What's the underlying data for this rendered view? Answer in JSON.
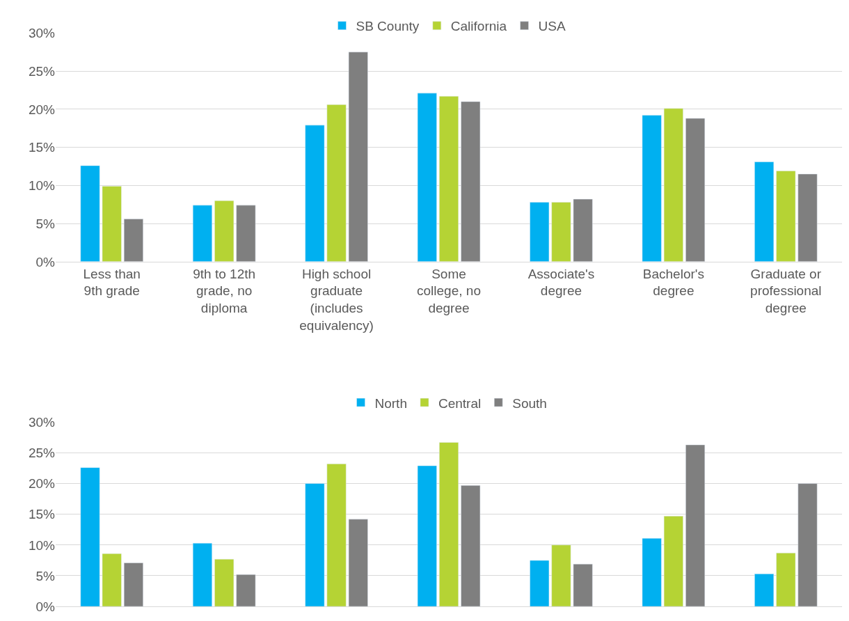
{
  "chart_data": [
    {
      "type": "bar",
      "categories": [
        "Less than\n9th grade",
        "9th to 12th\ngrade, no\ndiploma",
        "High school\ngraduate\n(includes\nequivalency)",
        "Some\ncollege, no\ndegree",
        "Associate's\ndegree",
        "Bachelor's\ndegree",
        "Graduate or\nprofessional\ndegree"
      ],
      "series": [
        {
          "name": "SB County",
          "color": "#00b0f0",
          "values": [
            12.6,
            7.4,
            17.9,
            22.1,
            7.8,
            19.2,
            13.1
          ]
        },
        {
          "name": "California",
          "color": "#b5d334",
          "values": [
            9.9,
            8.0,
            20.6,
            21.7,
            7.8,
            20.1,
            11.9
          ]
        },
        {
          "name": "USA",
          "color": "#7f7f7f",
          "values": [
            5.6,
            7.4,
            27.5,
            21.0,
            8.2,
            18.8,
            11.5
          ]
        }
      ],
      "ylim": [
        0,
        30
      ],
      "yticks": [
        {
          "value": 0,
          "label": "0%"
        },
        {
          "value": 5,
          "label": "5%"
        },
        {
          "value": 10,
          "label": "10%"
        },
        {
          "value": 15,
          "label": "15%"
        },
        {
          "value": 20,
          "label": "20%"
        },
        {
          "value": 25,
          "label": "25%"
        },
        {
          "value": 30,
          "label": "30%"
        }
      ],
      "grid": "y",
      "legend": "top"
    },
    {
      "type": "bar",
      "categories": [
        null,
        null,
        null,
        null,
        null,
        null,
        null
      ],
      "series": [
        {
          "name": "North",
          "color": "#00b0f0",
          "values": [
            22.6,
            10.3,
            20.0,
            22.9,
            7.5,
            11.1,
            5.3
          ]
        },
        {
          "name": "Central",
          "color": "#b5d334",
          "values": [
            8.6,
            7.7,
            23.2,
            26.7,
            10.0,
            14.7,
            8.7
          ]
        },
        {
          "name": "South",
          "color": "#7f7f7f",
          "values": [
            7.1,
            5.2,
            14.2,
            19.7,
            6.9,
            26.3,
            20.0
          ]
        }
      ],
      "ylim": [
        0,
        30
      ],
      "yticks": [
        {
          "value": 0,
          "label": "0%"
        },
        {
          "value": 5,
          "label": "5%"
        },
        {
          "value": 10,
          "label": "10%"
        },
        {
          "value": 15,
          "label": "15%"
        },
        {
          "value": 20,
          "label": "20%"
        },
        {
          "value": 25,
          "label": "25%"
        },
        {
          "value": 30,
          "label": "30%"
        }
      ],
      "grid": "y",
      "legend": "top",
      "tick_labels": "y"
    }
  ]
}
